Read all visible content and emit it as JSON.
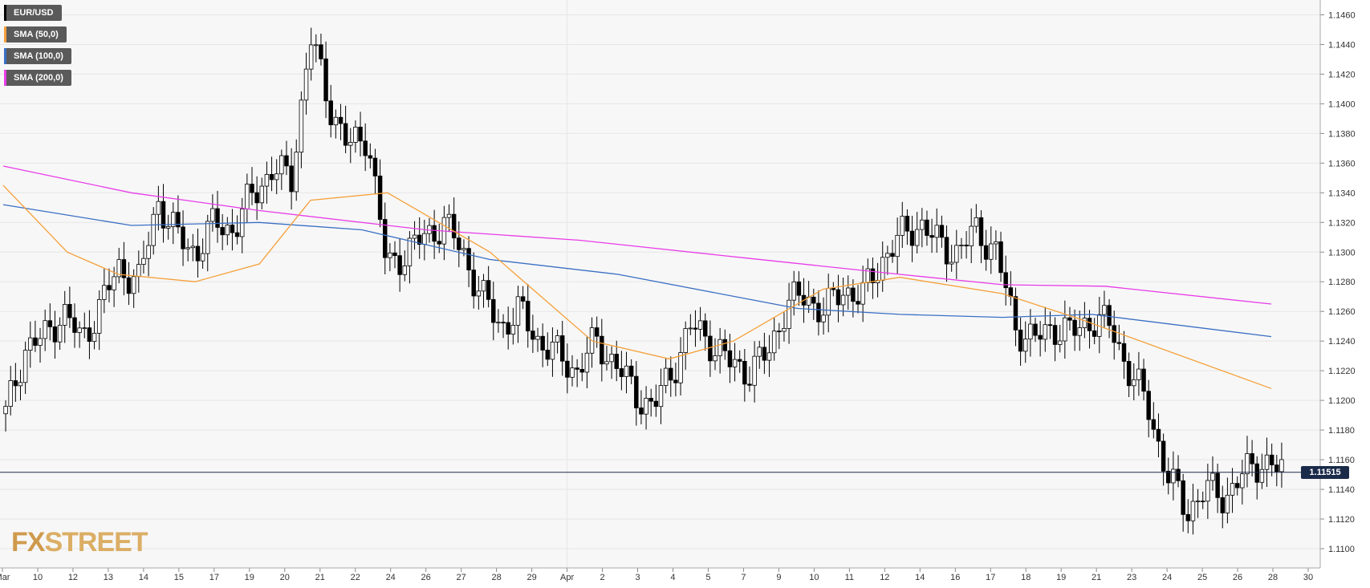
{
  "instrument": "EUR/USD",
  "legend": [
    {
      "label": "EUR/USD",
      "color": "#000000"
    },
    {
      "label": "SMA (50,0)",
      "color": "#f5a03a"
    },
    {
      "label": "SMA (100,0)",
      "color": "#3a6fc4"
    },
    {
      "label": "SMA (200,0)",
      "color": "#e83ce8"
    }
  ],
  "logo": {
    "fx": "FX",
    "street": "STREET"
  },
  "current_price": "1.11515",
  "chart_data": {
    "type": "candlestick",
    "y_ticks": [
      "1.1100",
      "1.1120",
      "1.1140",
      "1.1160",
      "1.1180",
      "1.1200",
      "1.1220",
      "1.1240",
      "1.1260",
      "1.1280",
      "1.1300",
      "1.1320",
      "1.1340",
      "1.1360",
      "1.1380",
      "1.1400",
      "1.1420",
      "1.1440",
      "1.1460"
    ],
    "ylim": [
      1.1087,
      1.147
    ],
    "x_ticks": [
      "Mar",
      "10",
      "12",
      "13",
      "14",
      "15",
      "17",
      "19",
      "20",
      "21",
      "22",
      "24",
      "26",
      "27",
      "28",
      "29",
      "Apr",
      "2",
      "3",
      "4",
      "5",
      "7",
      "9",
      "10",
      "11",
      "12",
      "14",
      "16",
      "17",
      "18",
      "19",
      "21",
      "23",
      "24",
      "25",
      "26",
      "28",
      "30"
    ],
    "grid": true,
    "colors": {
      "up": "#ffffff",
      "down": "#000000",
      "sma50": "#f5a03a",
      "sma100": "#3a6fc4",
      "sma200": "#e83ce8",
      "price_line": "#1a2b4a"
    },
    "close_anchors": [
      1.119,
      1.1235,
      1.1242,
      1.126,
      1.124,
      1.1265,
      1.129,
      1.128,
      1.1335,
      1.131,
      1.13,
      1.132,
      1.1315,
      1.134,
      1.1355,
      1.135,
      1.1445,
      1.14,
      1.137,
      1.138,
      1.129,
      1.13,
      1.131,
      1.132,
      1.13,
      1.127,
      1.125,
      1.126,
      1.124,
      1.123,
      1.122,
      1.124,
      1.1225,
      1.1205,
      1.1195,
      1.122,
      1.125,
      1.124,
      1.1225,
      1.122,
      1.123,
      1.1265,
      1.127,
      1.126,
      1.1275,
      1.127,
      1.1295,
      1.131,
      1.132,
      1.1305,
      1.13,
      1.1315,
      1.13,
      1.125,
      1.124,
      1.125,
      1.1245,
      1.1255,
      1.125,
      1.122,
      1.1195,
      1.115,
      1.1125,
      1.114,
      1.1135,
      1.115,
      1.116,
      1.11515
    ],
    "sma50": [
      [
        1.1345,
        0
      ],
      [
        1.13,
        0.05
      ],
      [
        1.1285,
        0.09
      ],
      [
        1.128,
        0.15
      ],
      [
        1.1292,
        0.2
      ],
      [
        1.1335,
        0.24
      ],
      [
        1.134,
        0.3
      ],
      [
        1.13,
        0.38
      ],
      [
        1.124,
        0.46
      ],
      [
        1.1228,
        0.52
      ],
      [
        1.124,
        0.57
      ],
      [
        1.1275,
        0.64
      ],
      [
        1.1283,
        0.7
      ],
      [
        1.1272,
        0.78
      ],
      [
        1.1255,
        0.84
      ],
      [
        1.1208,
        0.99
      ]
    ],
    "sma100": [
      [
        1.1332,
        0
      ],
      [
        1.1318,
        0.1
      ],
      [
        1.132,
        0.2
      ],
      [
        1.1315,
        0.28
      ],
      [
        1.1295,
        0.38
      ],
      [
        1.1285,
        0.48
      ],
      [
        1.1262,
        0.62
      ],
      [
        1.1258,
        0.7
      ],
      [
        1.1256,
        0.78
      ],
      [
        1.1258,
        0.85
      ],
      [
        1.1243,
        0.99
      ]
    ],
    "sma200": [
      [
        1.1358,
        0
      ],
      [
        1.134,
        0.1
      ],
      [
        1.1328,
        0.2
      ],
      [
        1.1315,
        0.33
      ],
      [
        1.1308,
        0.45
      ],
      [
        1.1296,
        0.58
      ],
      [
        1.1285,
        0.7
      ],
      [
        1.1278,
        0.78
      ],
      [
        1.1277,
        0.86
      ],
      [
        1.1265,
        0.99
      ]
    ]
  }
}
